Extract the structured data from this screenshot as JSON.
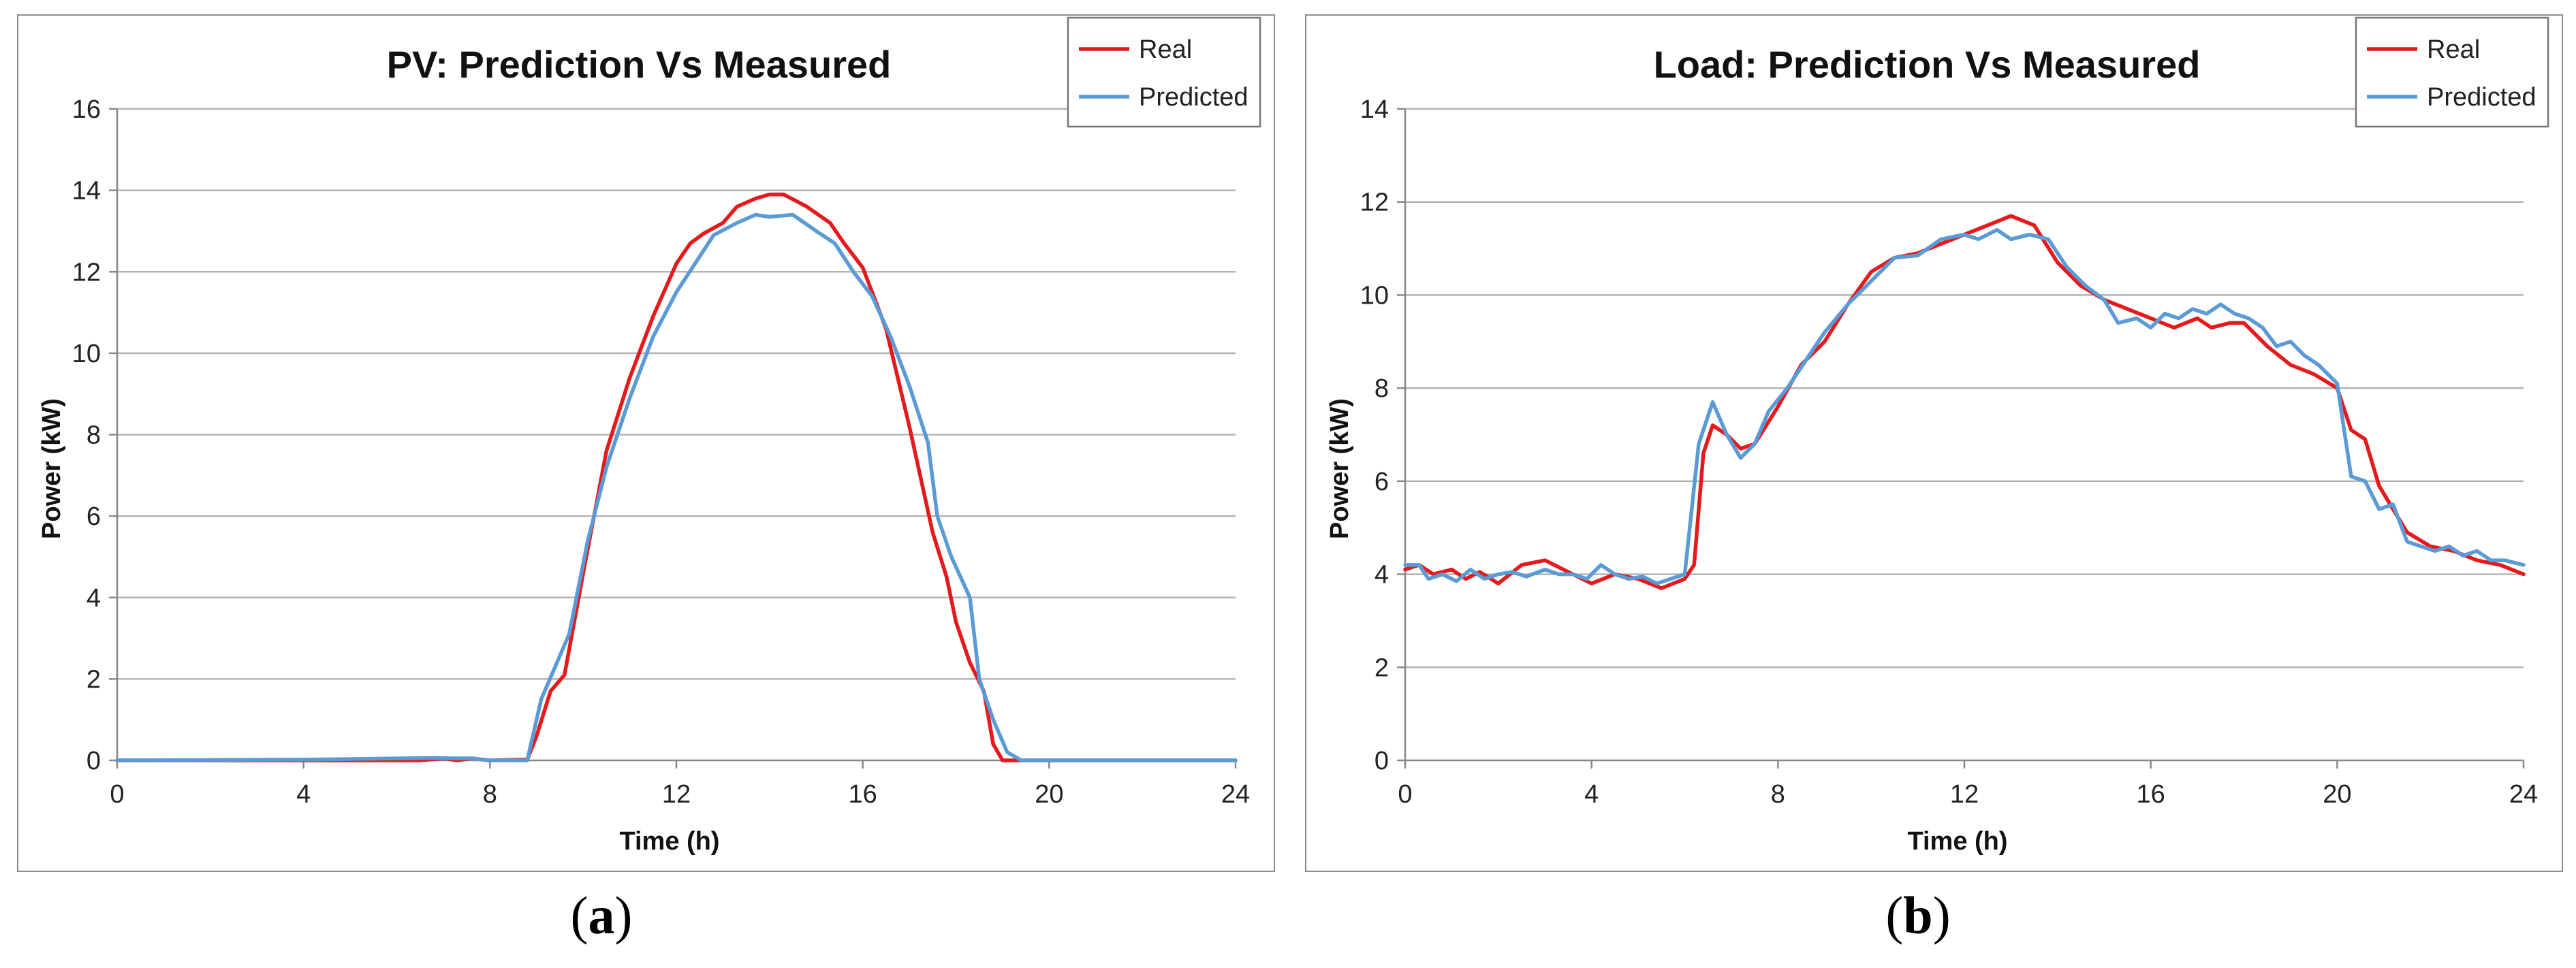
{
  "panels": [
    {
      "caption": "a",
      "chart_data": {
        "type": "line",
        "title": "PV: Prediction Vs Measured",
        "xlabel": "Time (h)",
        "ylabel": "Power (kW)",
        "xlim": [
          0,
          24
        ],
        "ylim": [
          0,
          16
        ],
        "xticks": [
          0,
          4,
          8,
          12,
          16,
          20,
          24
        ],
        "yticks": [
          0,
          2,
          4,
          6,
          8,
          10,
          12,
          14,
          16
        ],
        "grid": true,
        "legend": "top-right",
        "series": [
          {
            "name": "Real",
            "color": "#e41a1c",
            "points": [
              [
                0,
                0
              ],
              [
                6.5,
                0
              ],
              [
                7.0,
                0.05
              ],
              [
                7.3,
                0
              ],
              [
                7.6,
                0.05
              ],
              [
                8.0,
                0
              ],
              [
                8.8,
                0.02
              ],
              [
                9.0,
                0.6
              ],
              [
                9.3,
                1.7
              ],
              [
                9.6,
                2.1
              ],
              [
                10.0,
                4.6
              ],
              [
                10.5,
                7.6
              ],
              [
                11.0,
                9.4
              ],
              [
                11.5,
                10.9
              ],
              [
                12.0,
                12.2
              ],
              [
                12.3,
                12.7
              ],
              [
                12.6,
                12.95
              ],
              [
                13.0,
                13.2
              ],
              [
                13.3,
                13.6
              ],
              [
                13.7,
                13.8
              ],
              [
                14.0,
                13.9
              ],
              [
                14.3,
                13.9
              ],
              [
                14.8,
                13.6
              ],
              [
                15.3,
                13.2
              ],
              [
                15.6,
                12.7
              ],
              [
                16.0,
                12.1
              ],
              [
                16.5,
                10.6
              ],
              [
                17.0,
                8.2
              ],
              [
                17.5,
                5.6
              ],
              [
                17.8,
                4.5
              ],
              [
                18.0,
                3.4
              ],
              [
                18.3,
                2.4
              ],
              [
                18.6,
                1.7
              ],
              [
                18.8,
                0.4
              ],
              [
                19.0,
                0
              ],
              [
                24,
                0
              ]
            ]
          },
          {
            "name": "Predicted",
            "color": "#5b9bd5",
            "points": [
              [
                0,
                0
              ],
              [
                4.2,
                0.02
              ],
              [
                6.8,
                0.06
              ],
              [
                7.2,
                0.05
              ],
              [
                7.6,
                0.05
              ],
              [
                8.0,
                0
              ],
              [
                8.8,
                0
              ],
              [
                9.1,
                1.5
              ],
              [
                9.4,
                2.3
              ],
              [
                9.7,
                3.1
              ],
              [
                10.1,
                5.4
              ],
              [
                10.5,
                7.2
              ],
              [
                11.0,
                8.9
              ],
              [
                11.5,
                10.4
              ],
              [
                12.0,
                11.5
              ],
              [
                12.4,
                12.2
              ],
              [
                12.8,
                12.9
              ],
              [
                13.3,
                13.2
              ],
              [
                13.7,
                13.4
              ],
              [
                14.0,
                13.35
              ],
              [
                14.5,
                13.4
              ],
              [
                15.0,
                13.0
              ],
              [
                15.4,
                12.7
              ],
              [
                15.8,
                12.0
              ],
              [
                16.2,
                11.4
              ],
              [
                16.6,
                10.4
              ],
              [
                17.0,
                9.2
              ],
              [
                17.4,
                7.8
              ],
              [
                17.6,
                6.0
              ],
              [
                17.9,
                5.0
              ],
              [
                18.3,
                4.0
              ],
              [
                18.5,
                2.0
              ],
              [
                18.8,
                1.0
              ],
              [
                19.1,
                0.2
              ],
              [
                19.4,
                0
              ],
              [
                24,
                0
              ]
            ]
          }
        ]
      }
    },
    {
      "caption": "b",
      "chart_data": {
        "type": "line",
        "title": "Load: Prediction Vs Measured",
        "xlabel": "Time (h)",
        "ylabel": "Power (kW)",
        "xlim": [
          0,
          24
        ],
        "ylim": [
          0,
          14
        ],
        "xticks": [
          0,
          4,
          8,
          12,
          16,
          20,
          24
        ],
        "yticks": [
          0,
          2,
          4,
          6,
          8,
          10,
          12,
          14
        ],
        "grid": true,
        "legend": "top-right",
        "series": [
          {
            "name": "Real",
            "color": "#e41a1c",
            "points": [
              [
                0,
                4.1
              ],
              [
                0.3,
                4.2
              ],
              [
                0.6,
                4.0
              ],
              [
                1.0,
                4.1
              ],
              [
                1.3,
                3.9
              ],
              [
                1.6,
                4.05
              ],
              [
                2.0,
                3.8
              ],
              [
                2.5,
                4.2
              ],
              [
                3.0,
                4.3
              ],
              [
                3.5,
                4.05
              ],
              [
                4.0,
                3.8
              ],
              [
                4.5,
                4.0
              ],
              [
                5.0,
                3.9
              ],
              [
                5.5,
                3.7
              ],
              [
                6.0,
                3.9
              ],
              [
                6.2,
                4.2
              ],
              [
                6.4,
                6.6
              ],
              [
                6.6,
                7.2
              ],
              [
                6.9,
                7.0
              ],
              [
                7.2,
                6.7
              ],
              [
                7.5,
                6.8
              ],
              [
                8.0,
                7.6
              ],
              [
                8.5,
                8.5
              ],
              [
                9.0,
                9.0
              ],
              [
                9.5,
                9.8
              ],
              [
                10.0,
                10.5
              ],
              [
                10.5,
                10.8
              ],
              [
                11.0,
                10.9
              ],
              [
                11.5,
                11.1
              ],
              [
                12.0,
                11.3
              ],
              [
                12.5,
                11.5
              ],
              [
                13.0,
                11.7
              ],
              [
                13.5,
                11.5
              ],
              [
                14.0,
                10.7
              ],
              [
                14.5,
                10.2
              ],
              [
                15.0,
                9.9
              ],
              [
                15.5,
                9.7
              ],
              [
                16.0,
                9.5
              ],
              [
                16.5,
                9.3
              ],
              [
                17.0,
                9.5
              ],
              [
                17.3,
                9.3
              ],
              [
                17.7,
                9.4
              ],
              [
                18.0,
                9.4
              ],
              [
                18.5,
                8.9
              ],
              [
                19.0,
                8.5
              ],
              [
                19.5,
                8.3
              ],
              [
                20.0,
                8.0
              ],
              [
                20.3,
                7.1
              ],
              [
                20.6,
                6.9
              ],
              [
                20.9,
                5.9
              ],
              [
                21.2,
                5.4
              ],
              [
                21.5,
                4.9
              ],
              [
                22.0,
                4.6
              ],
              [
                22.5,
                4.5
              ],
              [
                23.0,
                4.3
              ],
              [
                23.5,
                4.2
              ],
              [
                24.0,
                4.0
              ]
            ]
          },
          {
            "name": "Predicted",
            "color": "#5b9bd5",
            "points": [
              [
                0,
                4.2
              ],
              [
                0.3,
                4.2
              ],
              [
                0.5,
                3.9
              ],
              [
                0.8,
                4.0
              ],
              [
                1.1,
                3.85
              ],
              [
                1.4,
                4.1
              ],
              [
                1.7,
                3.9
              ],
              [
                2.0,
                4.0
              ],
              [
                2.3,
                4.05
              ],
              [
                2.6,
                3.95
              ],
              [
                3.0,
                4.1
              ],
              [
                3.3,
                4.0
              ],
              [
                3.6,
                4.0
              ],
              [
                3.9,
                3.9
              ],
              [
                4.2,
                4.2
              ],
              [
                4.5,
                4.0
              ],
              [
                4.8,
                3.9
              ],
              [
                5.1,
                3.95
              ],
              [
                5.4,
                3.8
              ],
              [
                5.7,
                3.9
              ],
              [
                6.0,
                4.0
              ],
              [
                6.3,
                6.8
              ],
              [
                6.6,
                7.7
              ],
              [
                6.9,
                7.0
              ],
              [
                7.2,
                6.5
              ],
              [
                7.5,
                6.8
              ],
              [
                7.8,
                7.5
              ],
              [
                8.2,
                8.0
              ],
              [
                8.6,
                8.6
              ],
              [
                9.0,
                9.2
              ],
              [
                9.5,
                9.8
              ],
              [
                10.0,
                10.3
              ],
              [
                10.5,
                10.8
              ],
              [
                11.0,
                10.85
              ],
              [
                11.5,
                11.2
              ],
              [
                12.0,
                11.3
              ],
              [
                12.3,
                11.2
              ],
              [
                12.7,
                11.4
              ],
              [
                13.0,
                11.2
              ],
              [
                13.4,
                11.3
              ],
              [
                13.8,
                11.2
              ],
              [
                14.2,
                10.6
              ],
              [
                14.6,
                10.2
              ],
              [
                15.0,
                9.9
              ],
              [
                15.3,
                9.4
              ],
              [
                15.7,
                9.5
              ],
              [
                16.0,
                9.3
              ],
              [
                16.3,
                9.6
              ],
              [
                16.6,
                9.5
              ],
              [
                16.9,
                9.7
              ],
              [
                17.2,
                9.6
              ],
              [
                17.5,
                9.8
              ],
              [
                17.8,
                9.6
              ],
              [
                18.1,
                9.5
              ],
              [
                18.4,
                9.3
              ],
              [
                18.7,
                8.9
              ],
              [
                19.0,
                9.0
              ],
              [
                19.3,
                8.7
              ],
              [
                19.6,
                8.5
              ],
              [
                20.0,
                8.1
              ],
              [
                20.3,
                6.1
              ],
              [
                20.6,
                6.0
              ],
              [
                20.9,
                5.4
              ],
              [
                21.2,
                5.5
              ],
              [
                21.5,
                4.7
              ],
              [
                21.8,
                4.6
              ],
              [
                22.1,
                4.5
              ],
              [
                22.4,
                4.6
              ],
              [
                22.7,
                4.4
              ],
              [
                23.0,
                4.5
              ],
              [
                23.3,
                4.3
              ],
              [
                23.6,
                4.3
              ],
              [
                24.0,
                4.2
              ]
            ]
          }
        ]
      }
    }
  ]
}
